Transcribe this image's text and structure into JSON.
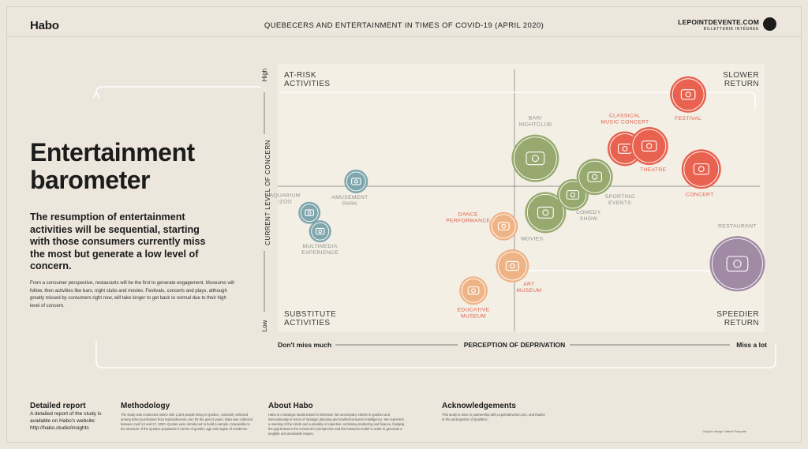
{
  "header": {
    "logo": "Habo",
    "title": "QUEBECERS AND ENTERTAINMENT IN TIMES OF COVID-19 (APRIL 2020)",
    "brand": "LEPOINTDEVENTE.COM",
    "brand_sub": "BILLETTERIE INTÉGRÉE"
  },
  "intro": {
    "title_line1": "Entertainment",
    "title_line2": "barometer",
    "lead": "The resumption of entertainment activities will be sequential, starting with those consumers currently miss the most but generate a low level of concern.",
    "body": "From a consumer perspective, restaurants will be the first to generate engagement. Museums will follow, then activities like bars, night clubs and movies. Festivals, concerts and plays, although greatly missed by consumers right now, will take longer to get back to normal due to their high level of concern."
  },
  "chart_data": {
    "type": "scatter",
    "xlabel": "PERCEPTION OF DEPRIVATION",
    "ylabel": "CURRENT LEVEL OF CONCERN",
    "x_low_label": "Don't miss much",
    "x_high_label": "Miss a lot",
    "y_low_label": "Low",
    "y_high_label": "High",
    "xlim": [
      0,
      100
    ],
    "ylim": [
      0,
      100
    ],
    "quadrants": {
      "top_left": [
        "AT-RISK",
        "ACTIVITIES"
      ],
      "top_right": [
        "SLOWER",
        "RETURN"
      ],
      "bottom_left": [
        "SUBSTITUTE",
        "ACTIVITIES"
      ],
      "bottom_right": [
        "SPEEDIER",
        "RETURN"
      ]
    },
    "colors": {
      "blue": "#7fa6ac",
      "green": "#97a96e",
      "red": "#e8624f",
      "orange": "#efb486",
      "purple": "#a08aa4",
      "label_red": "#e0604b",
      "label_grey": "#8f918a",
      "panel": "#f3efe5"
    },
    "points": [
      {
        "label": [
          "AQUARIUM",
          "/ZOO"
        ],
        "x": 6.5,
        "y": 44.5,
        "r": 14,
        "color": "blue",
        "icon": "fish-icon"
      },
      {
        "label": [
          "MULTIMEDIA",
          "EXPERIENCE"
        ],
        "x": 8.7,
        "y": 37.6,
        "r": 14,
        "color": "blue",
        "icon": "vr-headset-icon"
      },
      {
        "label": [
          "AMUSEMENT",
          "PARK"
        ],
        "x": 16.1,
        "y": 56.2,
        "r": 15,
        "color": "blue",
        "icon": "carousel-icon"
      },
      {
        "label": [
          "BAR/",
          "NIGHTCLUB"
        ],
        "x": 52.9,
        "y": 64.8,
        "r": 30,
        "color": "green",
        "icon": "bottles-icon"
      },
      {
        "label": [
          "MOVIES"
        ],
        "x": 55.0,
        "y": 44.6,
        "r": 26,
        "color": "green",
        "icon": "cinema-icon"
      },
      {
        "label": [
          "COMEDY",
          "SHOW"
        ],
        "x": 60.6,
        "y": 51.2,
        "r": 20,
        "color": "green",
        "icon": "laughing-face-icon"
      },
      {
        "label": [
          "SPORTING",
          "EVENTS"
        ],
        "x": 65.1,
        "y": 57.9,
        "r": 23,
        "color": "green",
        "icon": "ball-icon"
      },
      {
        "label": [
          "CLASSICAL",
          "MUSIC CONCERT"
        ],
        "x": 71.3,
        "y": 68.4,
        "r": 22,
        "color": "red",
        "icon": "music-notes-icon"
      },
      {
        "label": [
          "THEATRE"
        ],
        "x": 76.3,
        "y": 69.4,
        "r": 24,
        "color": "red",
        "icon": "theatre-masks-icon"
      },
      {
        "label": [
          "FESTIVAL"
        ],
        "x": 84.3,
        "y": 88.6,
        "r": 23,
        "color": "red",
        "icon": "stage-icon"
      },
      {
        "label": [
          "CONCERT"
        ],
        "x": 87.0,
        "y": 60.8,
        "r": 25,
        "color": "red",
        "icon": "microphone-icon"
      },
      {
        "label": [
          "DANCE",
          "PERFORMANCE"
        ],
        "x": 46.4,
        "y": 39.5,
        "r": 18,
        "color": "orange",
        "icon": "dancers-icon"
      },
      {
        "label": [
          "ART",
          "MUSEUM"
        ],
        "x": 48.2,
        "y": 24.7,
        "r": 21,
        "color": "orange",
        "icon": "frame-icon"
      },
      {
        "label": [
          "EDUCATIVE",
          "MUSEUM"
        ],
        "x": 40.2,
        "y": 15.5,
        "r": 18,
        "color": "orange",
        "icon": "museum-icon"
      },
      {
        "label": [
          "RESTAURANT"
        ],
        "x": 94.4,
        "y": 25.5,
        "r": 35,
        "color": "purple",
        "icon": "plate-cutlery-icon"
      }
    ]
  },
  "footer": {
    "report_title": "Detailed report",
    "report_text": "A detailed report of the study is available on Habo's website: http://habo.studio/insights",
    "method_title": "Methodology",
    "method_text": "The study was conducted online with 1,304 people living in Quebec, randomly selected among ticket purchasers from lepointdevente.com for the past 3 years. Data was collected between April 13 and 17, 2020. Quotas were introduced to build a sample comparable to the structure of the Quebec population in terms of gender, age and region of residence.",
    "about_title": "About Habo",
    "about_text": "Habo is a strategic studio based in Montreal. We accompany clients in Quebec and internationally in terms of strategic planning and market/consumer intelligence. We represent a meeting of the minds and a plurality of expertise combining marketing and finance, bridging the gap between the consumer's perspective and the business model in order to generate a tangible and actionable impact.",
    "ack_title": "Acknowledgements",
    "ack_text": "This study is done in partnership with Lepointdevente.com, and thanks to the participation of Qualitrics.",
    "credit": "Graphic design: Valérie Paquette"
  }
}
